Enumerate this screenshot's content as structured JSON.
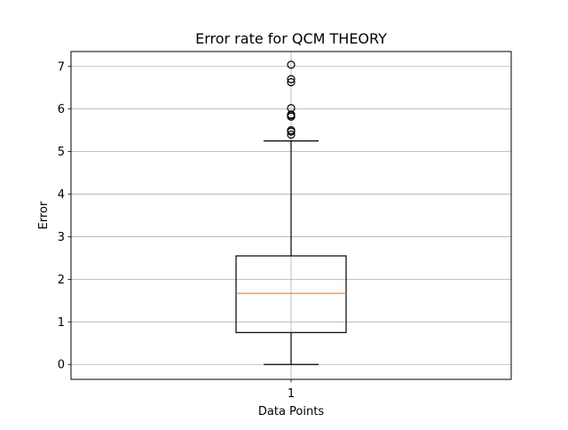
{
  "chart_data": {
    "type": "boxplot",
    "title": "Error rate for QCM THEORY",
    "xlabel": "Data Points",
    "ylabel": "Error",
    "categories": [
      "1"
    ],
    "boxes": [
      {
        "label": "1",
        "whisker_low": 0.0,
        "q1": 0.75,
        "median": 1.67,
        "q3": 2.55,
        "whisker_high": 5.25,
        "outliers": [
          5.4,
          5.47,
          5.5,
          5.82,
          5.85,
          5.87,
          6.02,
          6.63,
          6.7,
          7.04
        ]
      }
    ],
    "ylim": [
      -0.35,
      7.35
    ],
    "yticks": [
      0,
      1,
      2,
      3,
      4,
      5,
      6,
      7
    ],
    "xlim": [
      0.5,
      1.5
    ],
    "grid": true,
    "colors": {
      "box": "#000000",
      "median": "#ff7f0e",
      "grid": "#b0b0b0",
      "outlier": "#000000"
    }
  }
}
